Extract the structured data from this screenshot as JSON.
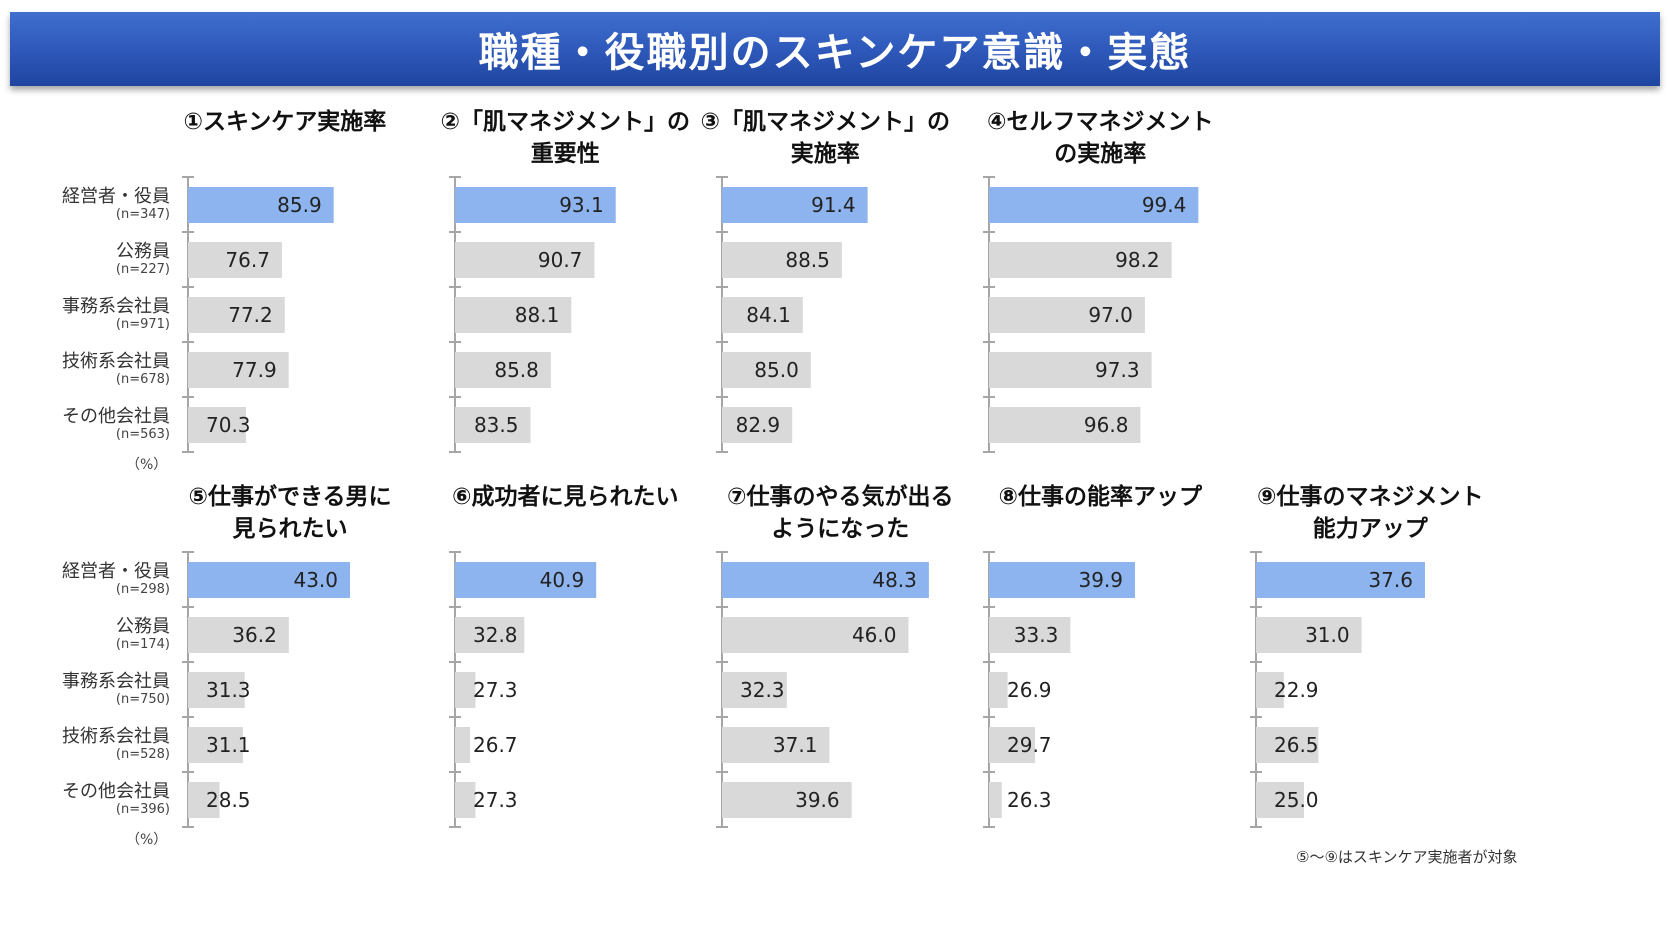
{
  "header": {
    "title": "職種・役職別のスキンケア意識・実態"
  },
  "colors": {
    "banner": "#2d57b8",
    "highlight_bar": "#8db4ee",
    "default_bar": "#d9d9d9",
    "axis": "#a6a6a6"
  },
  "footnote": "⑤～⑨はスキンケア実施者が対象",
  "unit_label": "（%）",
  "chart_data": [
    {
      "type": "bar",
      "orientation": "horizontal",
      "title": "①スキンケア実施率",
      "categories": [
        "経営者・役員",
        "公務員",
        "事務系会社員",
        "技術系会社員",
        "その他会社員"
      ],
      "sample_sizes": [
        "(n=347)",
        "(n=227)",
        "(n=971)",
        "(n=678)",
        "(n=563)"
      ],
      "values": [
        85.9,
        76.7,
        77.2,
        77.9,
        70.3
      ],
      "highlight_index": 0,
      "xlim": [
        60,
        100
      ],
      "unit": "%"
    },
    {
      "type": "bar",
      "orientation": "horizontal",
      "title": "②「肌マネジメント」の\n重要性",
      "categories": [
        "経営者・役員",
        "公務員",
        "事務系会社員",
        "技術系会社員",
        "その他会社員"
      ],
      "values": [
        93.1,
        90.7,
        88.1,
        85.8,
        83.5
      ],
      "highlight_index": 0,
      "xlim": [
        75,
        100
      ],
      "unit": "%"
    },
    {
      "type": "bar",
      "orientation": "horizontal",
      "title": "③「肌マネジメント」の\n実施率",
      "categories": [
        "経営者・役員",
        "公務員",
        "事務系会社員",
        "技術系会社員",
        "その他会社員"
      ],
      "values": [
        91.4,
        88.5,
        84.1,
        85.0,
        82.9
      ],
      "highlight_index": 0,
      "xlim": [
        75,
        100
      ],
      "unit": "%"
    },
    {
      "type": "bar",
      "orientation": "horizontal",
      "title": "④セルフマネジメント\nの実施率",
      "categories": [
        "経営者・役員",
        "公務員",
        "事務系会社員",
        "技術系会社員",
        "その他会社員"
      ],
      "values": [
        99.4,
        98.2,
        97.0,
        97.3,
        96.8
      ],
      "highlight_index": 0,
      "xlim": [
        90,
        101
      ],
      "unit": "%"
    },
    {
      "type": "bar",
      "orientation": "horizontal",
      "title": "⑤仕事ができる男に\n見られたい",
      "categories": [
        "経営者・役員",
        "公務員",
        "事務系会社員",
        "技術系会社員",
        "その他会社員"
      ],
      "sample_sizes": [
        "(n=298)",
        "(n=174)",
        "(n=750)",
        "(n=528)",
        "(n=396)"
      ],
      "values": [
        43.0,
        36.2,
        31.3,
        31.1,
        28.5
      ],
      "highlight_index": 0,
      "xlim": [
        25,
        50
      ],
      "unit": "%"
    },
    {
      "type": "bar",
      "orientation": "horizontal",
      "title": "⑥成功者に見られたい",
      "categories": [
        "経営者・役員",
        "公務員",
        "事務系会社員",
        "技術系会社員",
        "その他会社員"
      ],
      "values": [
        40.9,
        32.8,
        27.3,
        26.7,
        27.3
      ],
      "highlight_index": 0,
      "xlim": [
        25,
        50
      ],
      "unit": "%"
    },
    {
      "type": "bar",
      "orientation": "horizontal",
      "title": "⑦仕事のやる気が出る\nようになった",
      "categories": [
        "経営者・役員",
        "公務員",
        "事務系会社員",
        "技術系会社員",
        "その他会社員"
      ],
      "values": [
        48.3,
        46.0,
        32.3,
        37.1,
        39.6
      ],
      "highlight_index": 0,
      "xlim": [
        25,
        50
      ],
      "unit": "%"
    },
    {
      "type": "bar",
      "orientation": "horizontal",
      "title": "⑧仕事の能率アップ",
      "categories": [
        "経営者・役員",
        "公務員",
        "事務系会社員",
        "技術系会社員",
        "その他会社員"
      ],
      "values": [
        39.9,
        33.3,
        26.9,
        29.7,
        26.3
      ],
      "highlight_index": 0,
      "xlim": [
        25,
        50
      ],
      "unit": "%"
    },
    {
      "type": "bar",
      "orientation": "horizontal",
      "title": "⑨仕事のマネジメント\n能力アップ",
      "categories": [
        "経営者・役員",
        "公務員",
        "事務系会社員",
        "技術系会社員",
        "その他会社員"
      ],
      "values": [
        37.6,
        31.0,
        22.9,
        26.5,
        25.0
      ],
      "highlight_index": 0,
      "xlim": [
        20,
        45
      ],
      "unit": "%"
    }
  ]
}
